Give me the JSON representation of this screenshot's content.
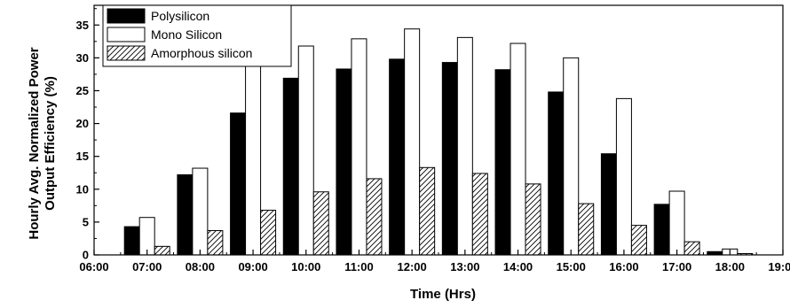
{
  "chart_data": {
    "type": "bar",
    "xlabel": "Time (Hrs)",
    "ylabel": "Hourly Avg. Normalized Power Output Efficiency (%)",
    "ylabel_lines": [
      "Hourly Avg. Normalized Power",
      "Output Efficiency (%)"
    ],
    "ylim": [
      0,
      38
    ],
    "yticks": [
      0,
      5,
      10,
      15,
      20,
      25,
      30,
      35
    ],
    "x_tick_labels": [
      "06:00",
      "07:00",
      "08:00",
      "09:00",
      "10:00",
      "11:00",
      "12:00",
      "13:00",
      "14:00",
      "15:00",
      "16:00",
      "17:00",
      "18:00",
      "19:00"
    ],
    "categories": [
      "07:00",
      "08:00",
      "09:00",
      "10:00",
      "11:00",
      "12:00",
      "13:00",
      "14:00",
      "15:00",
      "16:00",
      "17:00",
      "18:00"
    ],
    "series": [
      {
        "name": "Polysilicon",
        "fill": "#000000",
        "values": [
          4.3,
          12.2,
          21.6,
          26.9,
          28.3,
          29.8,
          29.3,
          28.2,
          24.8,
          15.4,
          7.7,
          0.5
        ]
      },
      {
        "name": "Mono Silicon",
        "fill": "#ffffff",
        "values": [
          5.7,
          13.2,
          28.8,
          31.8,
          32.9,
          34.4,
          33.1,
          32.2,
          30.0,
          23.8,
          9.7,
          0.9
        ]
      },
      {
        "name": "Amorphous silicon",
        "fill": "hatch",
        "values": [
          1.3,
          3.7,
          6.8,
          9.6,
          11.6,
          13.3,
          12.4,
          10.8,
          7.8,
          4.5,
          2.0,
          0.2
        ]
      }
    ],
    "legend_position": "top-left",
    "grid": false
  }
}
